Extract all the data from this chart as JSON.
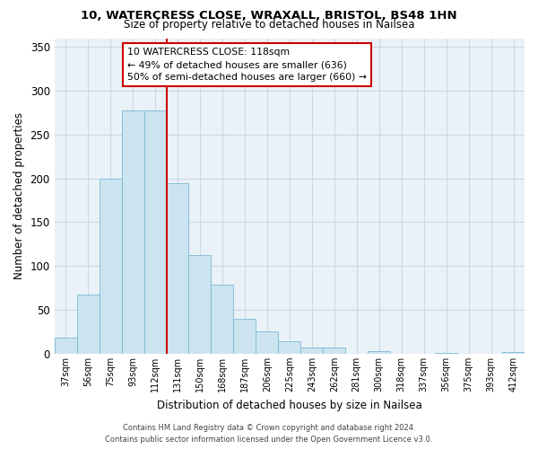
{
  "title_line1": "10, WATERCRESS CLOSE, WRAXALL, BRISTOL, BS48 1HN",
  "title_line2": "Size of property relative to detached houses in Nailsea",
  "xlabel": "Distribution of detached houses by size in Nailsea",
  "ylabel": "Number of detached properties",
  "bar_labels": [
    "37sqm",
    "56sqm",
    "75sqm",
    "93sqm",
    "112sqm",
    "131sqm",
    "150sqm",
    "168sqm",
    "187sqm",
    "206sqm",
    "225sqm",
    "243sqm",
    "262sqm",
    "281sqm",
    "300sqm",
    "318sqm",
    "337sqm",
    "356sqm",
    "375sqm",
    "393sqm",
    "412sqm"
  ],
  "bar_heights": [
    18,
    68,
    200,
    278,
    278,
    195,
    113,
    79,
    40,
    25,
    14,
    7,
    7,
    0,
    3,
    0,
    0,
    1,
    0,
    0,
    2
  ],
  "bar_color": "#cce4f0",
  "bar_edge_color": "#7ab8d4",
  "vline_color": "#cc0000",
  "vline_x": 4.5,
  "ylim": [
    0,
    360
  ],
  "yticks": [
    0,
    50,
    100,
    150,
    200,
    250,
    300,
    350
  ],
  "annotation_text": "10 WATERCRESS CLOSE: 118sqm\n← 49% of detached houses are smaller (636)\n50% of semi-detached houses are larger (660) →",
  "footer_line1": "Contains HM Land Registry data © Crown copyright and database right 2024.",
  "footer_line2": "Contains public sector information licensed under the Open Government Licence v3.0.",
  "background_color": "#ffffff",
  "plot_bg_color": "#eaf2f8",
  "grid_color": "#c8d8e8"
}
